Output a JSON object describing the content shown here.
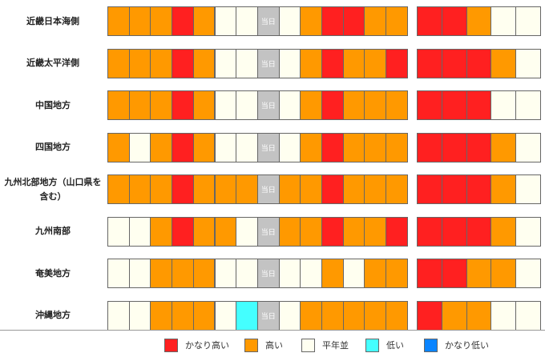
{
  "colors": {
    "かなり高い": "#ff2020",
    "高い": "#ff9900",
    "平年並": "#fffff0",
    "低い": "#44ffff",
    "かなり低い": "#0a84ff",
    "当日": "#c3c3c3"
  },
  "today_label": "当日",
  "regions": [
    {
      "name": "近畿日本海側",
      "daily": [
        "高い",
        "高い",
        "高い",
        "かなり高い",
        "高い",
        "平年並",
        "平年並",
        "当日",
        "平年並",
        "高い",
        "かなり高い",
        "かなり高い",
        "高い",
        "高い"
      ],
      "weekly": [
        "かなり高い",
        "かなり高い",
        "高い",
        "平年並",
        "平年並"
      ]
    },
    {
      "name": "近畿太平洋側",
      "daily": [
        "高い",
        "高い",
        "高い",
        "かなり高い",
        "高い",
        "平年並",
        "平年並",
        "当日",
        "平年並",
        "高い",
        "かなり高い",
        "高い",
        "高い",
        "かなり高い"
      ],
      "weekly": [
        "かなり高い",
        "かなり高い",
        "かなり高い",
        "高い",
        "平年並"
      ]
    },
    {
      "name": "中国地方",
      "daily": [
        "高い",
        "高い",
        "高い",
        "かなり高い",
        "高い",
        "平年並",
        "平年並",
        "当日",
        "平年並",
        "高い",
        "かなり高い",
        "高い",
        "高い",
        "高い"
      ],
      "weekly": [
        "かなり高い",
        "かなり高い",
        "かなり高い",
        "平年並",
        "平年並"
      ]
    },
    {
      "name": "四国地方",
      "daily": [
        "高い",
        "平年並",
        "高い",
        "かなり高い",
        "高い",
        "平年並",
        "平年並",
        "当日",
        "平年並",
        "高い",
        "かなり高い",
        "高い",
        "高い",
        "高い"
      ],
      "weekly": [
        "かなり高い",
        "かなり高い",
        "かなり高い",
        "高い",
        "平年並"
      ]
    },
    {
      "name": "九州北部地方（山口県を含む）",
      "daily": [
        "高い",
        "高い",
        "高い",
        "かなり高い",
        "高い",
        "高い",
        "高い",
        "当日",
        "高い",
        "高い",
        "かなり高い",
        "高い",
        "高い",
        "高い"
      ],
      "weekly": [
        "かなり高い",
        "かなり高い",
        "かなり高い",
        "高い",
        "平年並"
      ]
    },
    {
      "name": "九州南部",
      "daily": [
        "平年並",
        "平年並",
        "高い",
        "かなり高い",
        "高い",
        "高い",
        "平年並",
        "当日",
        "高い",
        "高い",
        "かなり高い",
        "高い",
        "高い",
        "かなり高い"
      ],
      "weekly": [
        "かなり高い",
        "かなり高い",
        "かなり高い",
        "高い",
        "平年並"
      ]
    },
    {
      "name": "奄美地方",
      "daily": [
        "平年並",
        "平年並",
        "高い",
        "高い",
        "高い",
        "平年並",
        "平年並",
        "当日",
        "平年並",
        "平年並",
        "高い",
        "平年並",
        "高い",
        "高い"
      ],
      "weekly": [
        "かなり高い",
        "かなり高い",
        "高い",
        "高い",
        "平年並"
      ]
    },
    {
      "name": "沖縄地方",
      "daily": [
        "平年並",
        "平年並",
        "高い",
        "高い",
        "高い",
        "平年並",
        "低い",
        "当日",
        "平年並",
        "高い",
        "高い",
        "高い",
        "高い",
        "高い"
      ],
      "weekly": [
        "かなり高い",
        "高い",
        "高い",
        "平年並",
        "平年並"
      ]
    }
  ],
  "legend": [
    {
      "key": "かなり高い",
      "label": "かなり高い"
    },
    {
      "key": "高い",
      "label": "高い"
    },
    {
      "key": "平年並",
      "label": "平年並"
    },
    {
      "key": "低い",
      "label": "低い"
    },
    {
      "key": "かなり低い",
      "label": "かなり低い"
    }
  ]
}
